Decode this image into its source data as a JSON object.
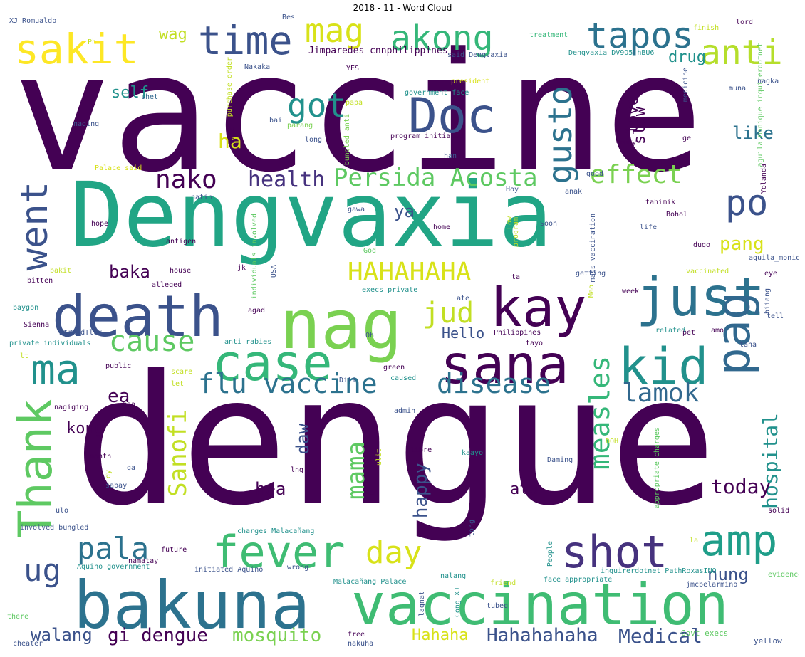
{
  "title": "2018 - 11 - Word Cloud",
  "palette": {
    "dark_purple": "#440154",
    "indigo": "#3b528b",
    "teal": "#21918c",
    "green": "#5ec962",
    "yellow": "#e5e419"
  },
  "words": [
    {
      "text": "vaccine",
      "color": "#440154"
    },
    {
      "text": "dengue",
      "color": "#440154"
    },
    {
      "text": "Dengvaxia",
      "color": "#21a585"
    },
    {
      "text": "nag",
      "color": "#7ad151"
    },
    {
      "text": "bakuna",
      "color": "#2c728e"
    },
    {
      "text": "death",
      "color": "#3b528b"
    },
    {
      "text": "vaccination",
      "color": "#3fbc73"
    },
    {
      "text": "Doc",
      "color": "#3b528b"
    },
    {
      "text": "sana",
      "color": "#440154"
    },
    {
      "text": "kay",
      "color": "#440154"
    },
    {
      "text": "just",
      "color": "#2c728e"
    },
    {
      "text": "case",
      "color": "#35b779"
    },
    {
      "text": "kid",
      "color": "#21918c"
    },
    {
      "text": "Thank",
      "color": "#5ec962"
    },
    {
      "text": "pag",
      "color": "#31688e"
    },
    {
      "text": "shot",
      "color": "#46327e"
    },
    {
      "text": "fever",
      "color": "#3fbc73"
    },
    {
      "text": "amp",
      "color": "#1f9e89"
    },
    {
      "text": "ma",
      "color": "#21918c"
    },
    {
      "text": "sakit",
      "color": "#fde725"
    },
    {
      "text": "time",
      "color": "#3b528b"
    },
    {
      "text": "tapos",
      "color": "#2c728e"
    },
    {
      "text": "anti",
      "color": "#b5de2b"
    },
    {
      "text": "akong",
      "color": "#35b779"
    },
    {
      "text": "mag",
      "color": "#d8e219"
    },
    {
      "text": "went",
      "color": "#3b528b"
    },
    {
      "text": "po",
      "color": "#3b528b"
    },
    {
      "text": "got",
      "color": "#21918c"
    },
    {
      "text": "gusto",
      "color": "#2c728e"
    },
    {
      "text": "flu vaccine",
      "color": "#2c728e"
    },
    {
      "text": "disease",
      "color": "#2c728e"
    },
    {
      "text": "HAHAHAHA",
      "color": "#d8e219"
    },
    {
      "text": "Persida Acosta",
      "color": "#5ec962"
    },
    {
      "text": "effect",
      "color": "#7ad151"
    },
    {
      "text": "jud",
      "color": "#c2df23"
    },
    {
      "text": "day",
      "color": "#d8e219"
    },
    {
      "text": "pala",
      "color": "#2c728e"
    },
    {
      "text": "ug",
      "color": "#3b528b"
    },
    {
      "text": "measles",
      "color": "#35b779"
    },
    {
      "text": "lamok",
      "color": "#31688e"
    },
    {
      "text": "cause",
      "color": "#5ec962"
    },
    {
      "text": "nako",
      "color": "#440154"
    },
    {
      "text": "health",
      "color": "#46327e"
    },
    {
      "text": "Sanofi",
      "color": "#c2df23"
    },
    {
      "text": "mama",
      "color": "#5ec962"
    },
    {
      "text": "hospital",
      "color": "#21918c"
    },
    {
      "text": "today",
      "color": "#440154"
    },
    {
      "text": "Hahahahaha",
      "color": "#3b528b"
    },
    {
      "text": "Medical",
      "color": "#3b528b"
    },
    {
      "text": "mosquito",
      "color": "#7ad151"
    },
    {
      "text": "gi dengue",
      "color": "#440154"
    },
    {
      "text": "walang",
      "color": "#3b528b"
    },
    {
      "text": "Hahaha",
      "color": "#d8e219"
    },
    {
      "text": "nung",
      "color": "#3b528b"
    },
    {
      "text": "happy",
      "color": "#3b528b"
    },
    {
      "text": "ata",
      "color": "#440154"
    },
    {
      "text": "hea",
      "color": "#440154"
    },
    {
      "text": "daw",
      "color": "#3b528b"
    },
    {
      "text": "kong",
      "color": "#440154"
    },
    {
      "text": "ea",
      "color": "#440154"
    },
    {
      "text": "baka",
      "color": "#440154"
    },
    {
      "text": "ya",
      "color": "#3b528b"
    },
    {
      "text": "pang",
      "color": "#d8e219"
    },
    {
      "text": "like",
      "color": "#2c728e"
    },
    {
      "text": "love",
      "color": "#440154"
    },
    {
      "text": "slow",
      "color": "#440154"
    },
    {
      "text": "drug",
      "color": "#21918c"
    },
    {
      "text": "self",
      "color": "#21918c"
    },
    {
      "text": "ha",
      "color": "#d8e219"
    },
    {
      "text": "wag",
      "color": "#c2df23"
    },
    {
      "text": "Hello",
      "color": "#3b528b"
    },
    {
      "text": "Jimparedes cnnphilippines",
      "color": "#440154"
    },
    {
      "text": "Dengvaxia DV9O5jhBU6",
      "color": "#21918c"
    },
    {
      "text": "XJ Romualdo",
      "color": "#3b528b"
    },
    {
      "text": "Bes",
      "color": "#3b528b"
    },
    {
      "text": "treatment",
      "color": "#35b779"
    },
    {
      "text": "finish",
      "color": "#c2df23"
    },
    {
      "text": "lord",
      "color": "#440154"
    },
    {
      "text": "Ph",
      "color": "#c2df23"
    },
    {
      "text": "said Dengvaxia",
      "color": "#3b528b"
    },
    {
      "text": "YES",
      "color": "#440154"
    },
    {
      "text": "Nakaka",
      "color": "#3b528b"
    },
    {
      "text": "purchase order",
      "color": "#c2df23"
    },
    {
      "text": "president",
      "color": "#d8e219"
    },
    {
      "text": "government face",
      "color": "#21918c"
    },
    {
      "text": "medicine",
      "color": "#3b528b"
    },
    {
      "text": "aguila_monique inquirerdotnet",
      "color": "#5ec962"
    },
    {
      "text": "nagka",
      "color": "#3b528b"
    },
    {
      "text": "shet",
      "color": "#31688e"
    },
    {
      "text": "papa",
      "color": "#c2df23"
    },
    {
      "text": "muna",
      "color": "#3b528b"
    },
    {
      "text": "bai",
      "color": "#3b528b"
    },
    {
      "text": "parang",
      "color": "#7ad151"
    },
    {
      "text": "unta",
      "color": "#440154"
    },
    {
      "text": "bungled anti",
      "color": "#7ad151"
    },
    {
      "text": "program initiated",
      "color": "#440154"
    },
    {
      "text": "naging",
      "color": "#3b528b"
    },
    {
      "text": "long",
      "color": "#3b528b"
    },
    {
      "text": "han",
      "color": "#3b528b"
    },
    {
      "text": "study",
      "color": "#440154"
    },
    {
      "text": "ge",
      "color": "#440154"
    },
    {
      "text": "Palace said",
      "color": "#d8e219"
    },
    {
      "text": "good",
      "color": "#3b528b"
    },
    {
      "text": "Yolanda",
      "color": "#440154"
    },
    {
      "text": "natin",
      "color": "#3b528b"
    },
    {
      "text": "Hoy",
      "color": "#3b528b"
    },
    {
      "text": "anak",
      "color": "#3b528b"
    },
    {
      "text": "tahimik",
      "color": "#440154"
    },
    {
      "text": "individuals involved",
      "color": "#5ec962"
    },
    {
      "text": "gawa",
      "color": "#3b528b"
    },
    {
      "text": "Low",
      "color": "#c2df23"
    },
    {
      "text": "program",
      "color": "#c2df23"
    },
    {
      "text": "Bohol",
      "color": "#440154"
    },
    {
      "text": "hope",
      "color": "#440154"
    },
    {
      "text": "home",
      "color": "#440154"
    },
    {
      "text": "Soon",
      "color": "#3b528b"
    },
    {
      "text": "life",
      "color": "#3b528b"
    },
    {
      "text": "antigen",
      "color": "#440154"
    },
    {
      "text": "God",
      "color": "#5ec962"
    },
    {
      "text": "mass vaccination",
      "color": "#3b528b"
    },
    {
      "text": "dugo",
      "color": "#440154"
    },
    {
      "text": "aguila_monique",
      "color": "#3b528b"
    },
    {
      "text": "bakit",
      "color": "#c2df23"
    },
    {
      "text": "house",
      "color": "#440154"
    },
    {
      "text": "jk",
      "color": "#440154"
    },
    {
      "text": "USA",
      "color": "#3b528b"
    },
    {
      "text": "ta",
      "color": "#440154"
    },
    {
      "text": "getting",
      "color": "#3b528b"
    },
    {
      "text": "vaccinated",
      "color": "#c2df23"
    },
    {
      "text": "eye",
      "color": "#440154"
    },
    {
      "text": "bitten",
      "color": "#440154"
    },
    {
      "text": "alleged",
      "color": "#440154"
    },
    {
      "text": "execs private",
      "color": "#21918c"
    },
    {
      "text": "ate",
      "color": "#3b528b"
    },
    {
      "text": "Mao",
      "color": "#c2df23"
    },
    {
      "text": "week",
      "color": "#440154"
    },
    {
      "text": "biiang",
      "color": "#3b528b"
    },
    {
      "text": "baygon",
      "color": "#21918c"
    },
    {
      "text": "agad",
      "color": "#440154"
    },
    {
      "text": "tell",
      "color": "#3b528b"
    },
    {
      "text": "Sienna",
      "color": "#440154"
    },
    {
      "text": "BtWHldTlcv",
      "color": "#3b528b"
    },
    {
      "text": "Philippines",
      "color": "#440154"
    },
    {
      "text": "Oh",
      "color": "#3b528b"
    },
    {
      "text": "pet",
      "color": "#440154"
    },
    {
      "text": "related",
      "color": "#21918c"
    },
    {
      "text": "amo",
      "color": "#440154"
    },
    {
      "text": "tayo",
      "color": "#440154"
    },
    {
      "text": "private individuals",
      "color": "#21918c"
    },
    {
      "text": "anti rabies",
      "color": "#21918c"
    },
    {
      "text": "lt",
      "color": "#c2df23"
    },
    {
      "text": "tana",
      "color": "#3b528b"
    },
    {
      "text": "public",
      "color": "#440154"
    },
    {
      "text": "green",
      "color": "#440154"
    },
    {
      "text": "scare",
      "color": "#c2df23"
    },
    {
      "text": "Dili",
      "color": "#3b528b"
    },
    {
      "text": "caused",
      "color": "#21918c"
    },
    {
      "text": "let",
      "color": "#c2df23"
    },
    {
      "text": "nagiging",
      "color": "#440154"
    },
    {
      "text": "naa",
      "color": "#440154"
    },
    {
      "text": "admin",
      "color": "#3b528b"
    },
    {
      "text": "month",
      "color": "#440154"
    },
    {
      "text": "libre",
      "color": "#440154"
    },
    {
      "text": "kaayo",
      "color": "#21918c"
    },
    {
      "text": "DOH",
      "color": "#c2df23"
    },
    {
      "text": "appropriate charges",
      "color": "#5ec962"
    },
    {
      "text": "ga",
      "color": "#3b528b"
    },
    {
      "text": "Daming",
      "color": "#3b528b"
    },
    {
      "text": "dy",
      "color": "#c2df23"
    },
    {
      "text": "sabay",
      "color": "#3b528b"
    },
    {
      "text": "ulit",
      "color": "#c2df23"
    },
    {
      "text": "lng",
      "color": "#440154"
    },
    {
      "text": "man",
      "color": "#440154"
    },
    {
      "text": "ulo",
      "color": "#3b528b"
    },
    {
      "text": "solid",
      "color": "#440154"
    },
    {
      "text": "involved bungled",
      "color": "#3b528b"
    },
    {
      "text": "charges Malacañang",
      "color": "#21918c"
    },
    {
      "text": "tong",
      "color": "#3b528b"
    },
    {
      "text": "People",
      "color": "#21918c"
    },
    {
      "text": "la",
      "color": "#c2df23"
    },
    {
      "text": "future",
      "color": "#440154"
    },
    {
      "text": "namatay",
      "color": "#440154"
    },
    {
      "text": "Aquino government",
      "color": "#21918c"
    },
    {
      "text": "initiated Aquino",
      "color": "#3b528b"
    },
    {
      "text": "wrong",
      "color": "#3b528b"
    },
    {
      "text": "nalang",
      "color": "#21918c"
    },
    {
      "text": "inquirerdotnet PathRoxasINQ",
      "color": "#21918c"
    },
    {
      "text": "evidence",
      "color": "#5ec962"
    },
    {
      "text": "Malacañang Palace",
      "color": "#21918c"
    },
    {
      "text": "lagnat",
      "color": "#3b528b"
    },
    {
      "text": "Cong XJ",
      "color": "#21918c"
    },
    {
      "text": "friend",
      "color": "#c2df23"
    },
    {
      "text": "face appropriate",
      "color": "#21918c"
    },
    {
      "text": "jmcbelarmino",
      "color": "#3b528b"
    },
    {
      "text": "there",
      "color": "#5ec962"
    },
    {
      "text": "tubeg",
      "color": "#3b528b"
    },
    {
      "text": "free",
      "color": "#440154"
    },
    {
      "text": "nakuha",
      "color": "#3b528b"
    },
    {
      "text": "cheater",
      "color": "#3b528b"
    },
    {
      "text": "Govt execs",
      "color": "#5ec962"
    },
    {
      "text": "yellow",
      "color": "#3b528b"
    }
  ]
}
